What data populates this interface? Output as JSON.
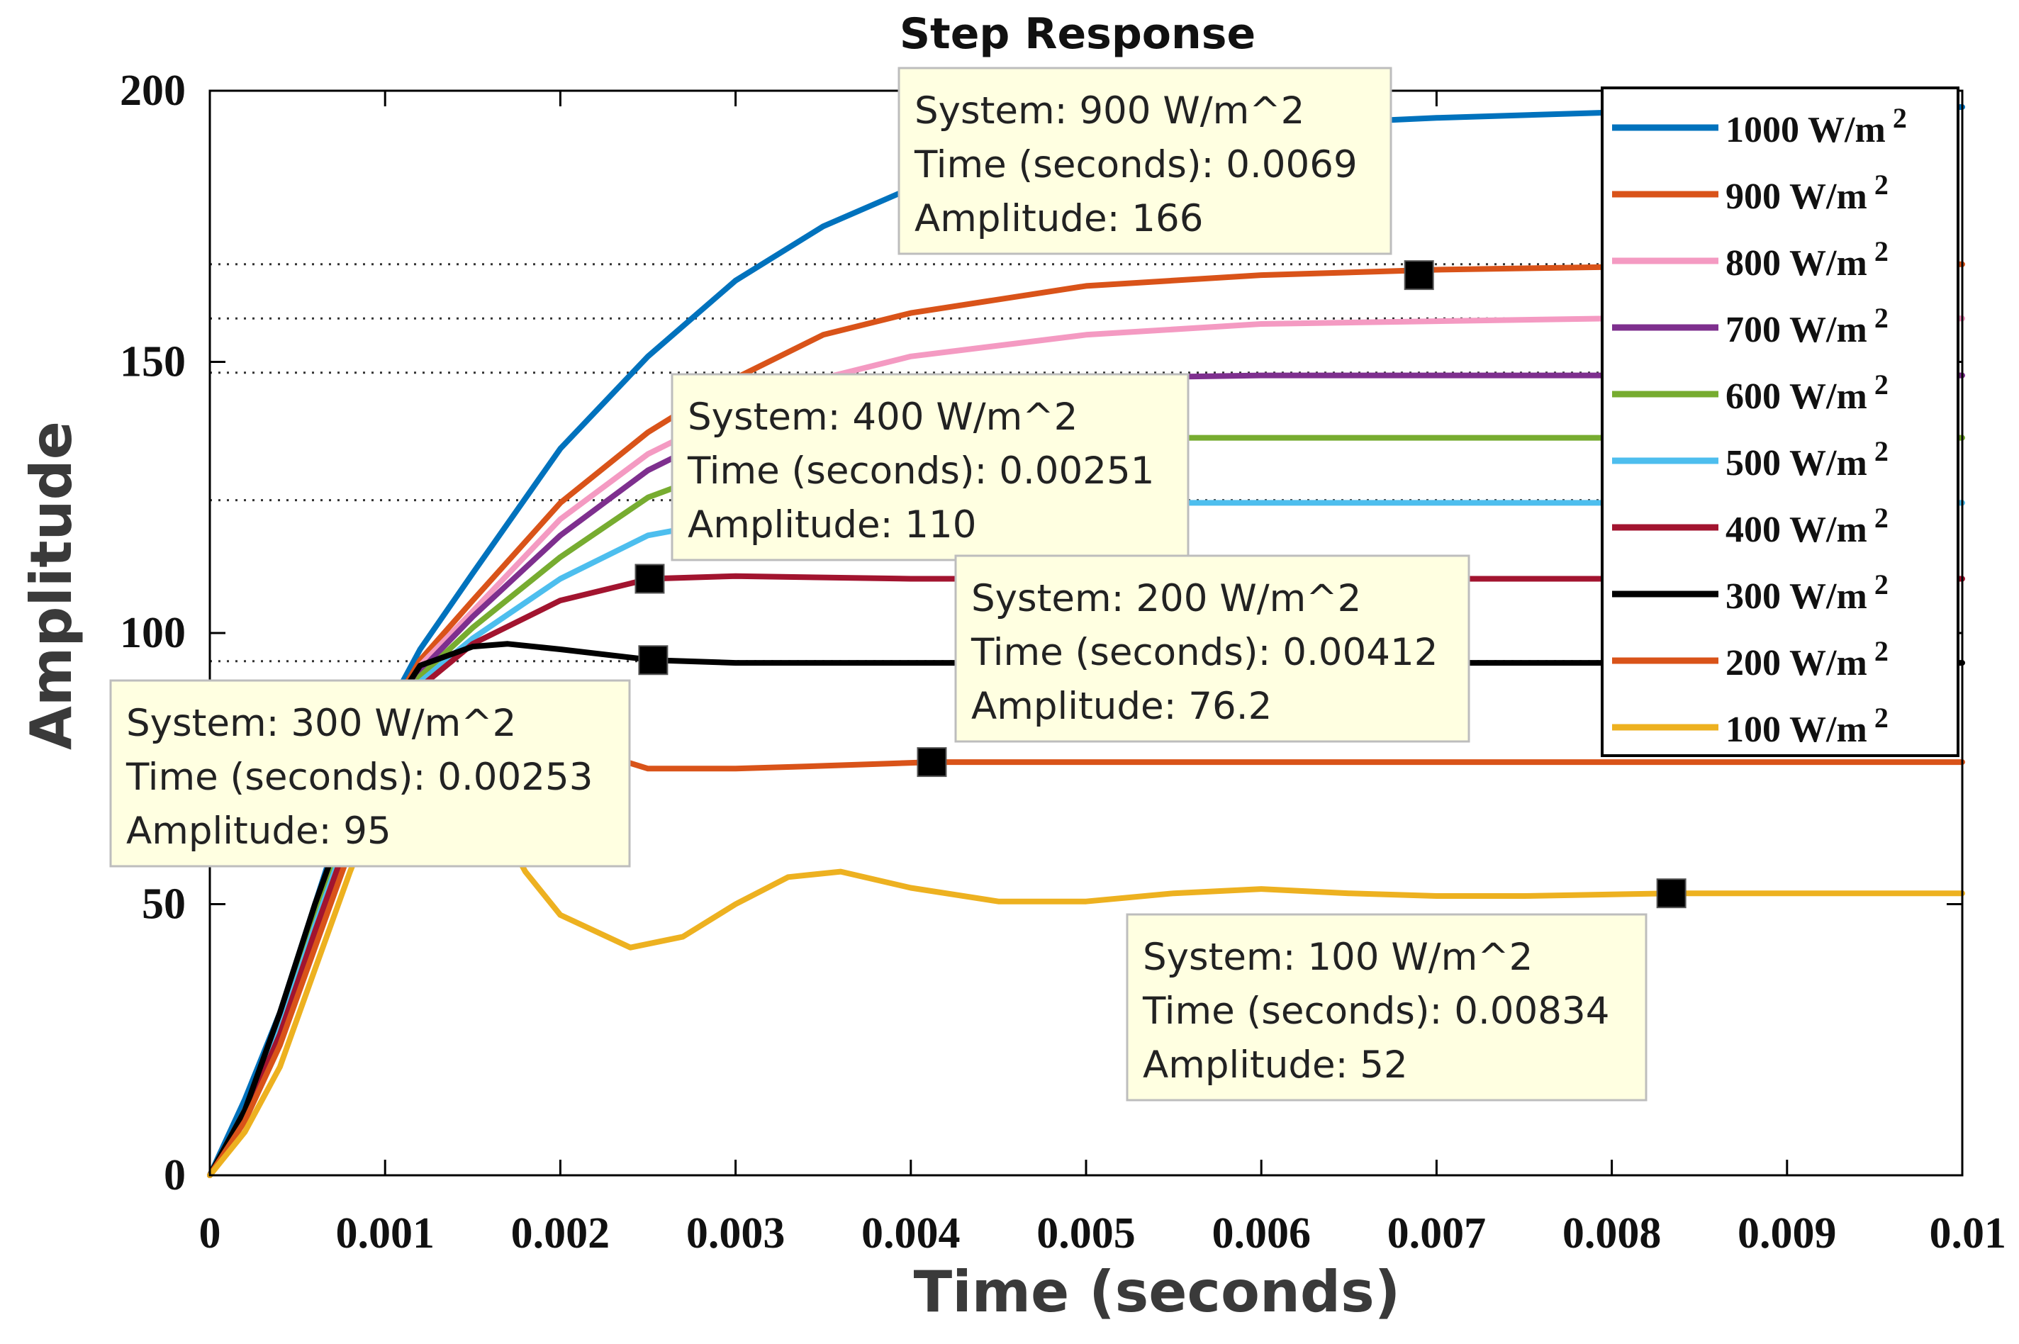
{
  "chart_data": {
    "type": "line",
    "title": "Step Response",
    "xlabel": "Time (seconds)",
    "ylabel": "Amplitude",
    "xlim": [
      0,
      0.01
    ],
    "ylim": [
      0,
      200
    ],
    "xticks": [
      0,
      0.001,
      0.002,
      0.003,
      0.004,
      0.005,
      0.006,
      0.007,
      0.008,
      0.009,
      0.01
    ],
    "xtick_labels": [
      "0",
      "0.001",
      "0.002",
      "0.003",
      "0.004",
      "0.005",
      "0.006",
      "0.007",
      "0.008",
      "0.009",
      "0.01"
    ],
    "yticks": [
      0,
      50,
      100,
      150,
      200
    ],
    "ytick_labels": [
      "0",
      "50",
      "100",
      "150",
      "200"
    ],
    "grid": false,
    "legend_position": "top-right",
    "series": [
      {
        "name": "1000 W/m",
        "superscript": "2",
        "color": "#0072BD",
        "x": [
          0,
          0.0002,
          0.0004,
          0.0006,
          0.0008,
          0.001,
          0.0012,
          0.0015,
          0.002,
          0.0025,
          0.003,
          0.0035,
          0.004,
          0.005,
          0.006,
          0.007,
          0.008,
          0.009,
          0.01
        ],
        "y": [
          0,
          14,
          30,
          50,
          70,
          85,
          97,
          111,
          134,
          151,
          165,
          175,
          182,
          190,
          193.5,
          195,
          196,
          196.5,
          197
        ]
      },
      {
        "name": "900 W/m",
        "superscript": "2",
        "color": "#D95319",
        "x": [
          0,
          0.0002,
          0.0004,
          0.0006,
          0.0008,
          0.001,
          0.0012,
          0.0015,
          0.002,
          0.0025,
          0.003,
          0.0035,
          0.004,
          0.005,
          0.006,
          0.007,
          0.008,
          0.009,
          0.01
        ],
        "y": [
          0,
          12,
          28,
          48,
          68,
          84,
          95,
          106,
          124,
          137,
          147,
          155,
          159,
          164,
          166,
          167,
          167.5,
          167.8,
          168
        ]
      },
      {
        "name": "800 W/m",
        "superscript": "2",
        "color": "#F49AC2",
        "x": [
          0,
          0.0002,
          0.0004,
          0.0006,
          0.0008,
          0.001,
          0.0012,
          0.0015,
          0.002,
          0.0025,
          0.003,
          0.0035,
          0.004,
          0.005,
          0.006,
          0.007,
          0.008,
          0.009,
          0.01
        ],
        "y": [
          0,
          12,
          28,
          48,
          67,
          83,
          94,
          104,
          121,
          133,
          141,
          147,
          151,
          155,
          157,
          157.5,
          158,
          158,
          158
        ]
      },
      {
        "name": "700 W/m",
        "superscript": "2",
        "color": "#7E2F8E",
        "x": [
          0,
          0.0002,
          0.0004,
          0.0006,
          0.0008,
          0.001,
          0.0012,
          0.0015,
          0.002,
          0.0025,
          0.003,
          0.0035,
          0.004,
          0.005,
          0.006,
          0.007,
          0.008,
          0.009,
          0.01
        ],
        "y": [
          0,
          12,
          28,
          47,
          66,
          82,
          93,
          103,
          118,
          130,
          138,
          143,
          145.5,
          147,
          147.5,
          147.5,
          147.5,
          147.5,
          147.5
        ]
      },
      {
        "name": "600 W/m",
        "superscript": "2",
        "color": "#77AC30",
        "x": [
          0,
          0.0002,
          0.0004,
          0.0006,
          0.0008,
          0.001,
          0.0012,
          0.0015,
          0.002,
          0.0025,
          0.003,
          0.0035,
          0.004,
          0.005,
          0.006,
          0.007,
          0.008,
          0.009,
          0.01
        ],
        "y": [
          0,
          12,
          27,
          47,
          65,
          81,
          92,
          101,
          114,
          125,
          131,
          134,
          135.5,
          136,
          136,
          136,
          136,
          136,
          136
        ]
      },
      {
        "name": "500 W/m",
        "superscript": "2",
        "color": "#4DBEEE",
        "x": [
          0,
          0.0002,
          0.0004,
          0.0006,
          0.0008,
          0.001,
          0.0012,
          0.0015,
          0.002,
          0.0025,
          0.003,
          0.0035,
          0.004,
          0.005,
          0.006,
          0.007,
          0.008,
          0.009,
          0.01
        ],
        "y": [
          0,
          11,
          27,
          46,
          64,
          80,
          91,
          99,
          110,
          118,
          121,
          123,
          124,
          124,
          124,
          124,
          124,
          124,
          124
        ]
      },
      {
        "name": "400 W/m",
        "superscript": "2",
        "color": "#A2142F",
        "x": [
          0,
          0.0002,
          0.0004,
          0.0006,
          0.0008,
          0.001,
          0.0012,
          0.0015,
          0.002,
          0.00251,
          0.003,
          0.004,
          0.005,
          0.006,
          0.007,
          0.008,
          0.009,
          0.01
        ],
        "y": [
          0,
          11,
          26,
          45,
          63,
          79,
          90,
          98,
          106,
          110,
          110.5,
          110,
          110,
          110,
          110,
          110,
          110,
          110
        ]
      },
      {
        "name": "300 W/m",
        "superscript": "2",
        "color": "#000000",
        "x": [
          0,
          0.0002,
          0.0004,
          0.0006,
          0.0008,
          0.001,
          0.0012,
          0.0015,
          0.0017,
          0.002,
          0.00253,
          0.003,
          0.004,
          0.005,
          0.006,
          0.007,
          0.008,
          0.009,
          0.01
        ],
        "y": [
          0,
          12,
          30,
          50,
          68,
          84,
          94,
          97.5,
          98,
          97,
          95,
          94.5,
          94.5,
          94.5,
          94.5,
          94.5,
          94.5,
          94.5,
          94.5
        ]
      },
      {
        "name": "200 W/m",
        "superscript": "2",
        "color": "#D95319",
        "x": [
          0,
          0.0002,
          0.0004,
          0.0006,
          0.0008,
          0.001,
          0.0012,
          0.0015,
          0.002,
          0.0025,
          0.003,
          0.0035,
          0.00412,
          0.005,
          0.006,
          0.007,
          0.008,
          0.009,
          0.01
        ],
        "y": [
          0,
          10,
          24,
          42,
          60,
          77,
          87,
          86,
          80,
          75,
          75,
          75.5,
          76.2,
          76.2,
          76.2,
          76.2,
          76.2,
          76.2,
          76.2
        ]
      },
      {
        "name": "100 W/m",
        "superscript": "2",
        "color": "#EDB120",
        "x": [
          0,
          0.0002,
          0.0004,
          0.0006,
          0.0008,
          0.001,
          0.0012,
          0.0015,
          0.0018,
          0.002,
          0.0024,
          0.0027,
          0.003,
          0.0033,
          0.0036,
          0.004,
          0.0045,
          0.005,
          0.0055,
          0.006,
          0.0065,
          0.007,
          0.0075,
          0.008,
          0.00834,
          0.009,
          0.01
        ],
        "y": [
          0,
          8,
          20,
          38,
          56,
          72,
          80,
          74,
          56,
          48,
          42,
          44,
          50,
          55,
          56,
          53,
          50.5,
          50.5,
          52,
          52.8,
          52,
          51.5,
          51.5,
          51.8,
          52,
          52,
          52
        ]
      }
    ],
    "reference_lines": [
      {
        "y": 168,
        "x_end": 0.01
      },
      {
        "y": 158,
        "x_end": 0.01
      },
      {
        "y": 148,
        "x_end": 0.01
      },
      {
        "y": 124.5,
        "x_end": 0.01
      },
      {
        "y": 94.8,
        "x_end": 0.01
      }
    ],
    "datatips": [
      {
        "anchor_x": 0.0069,
        "anchor_y": 166,
        "lines": [
          "System: 900 W/m^2",
          "Time (seconds): 0.0069",
          "Amplitude: 166"
        ]
      },
      {
        "anchor_x": 0.00251,
        "anchor_y": 110,
        "lines": [
          "System: 400 W/m^2",
          "Time (seconds): 0.00251",
          "Amplitude: 110"
        ]
      },
      {
        "anchor_x": 0.00412,
        "anchor_y": 76.2,
        "lines": [
          "System: 200 W/m^2",
          "Time (seconds): 0.00412",
          "Amplitude: 76.2"
        ]
      },
      {
        "anchor_x": 0.00253,
        "anchor_y": 95,
        "lines": [
          "System: 300 W/m^2",
          "Time (seconds): 0.00253",
          "Amplitude: 95"
        ]
      },
      {
        "anchor_x": 0.00834,
        "anchor_y": 52,
        "lines": [
          "System: 100 W/m^2",
          "Time (seconds): 0.00834",
          "Amplitude: 52"
        ]
      }
    ]
  }
}
